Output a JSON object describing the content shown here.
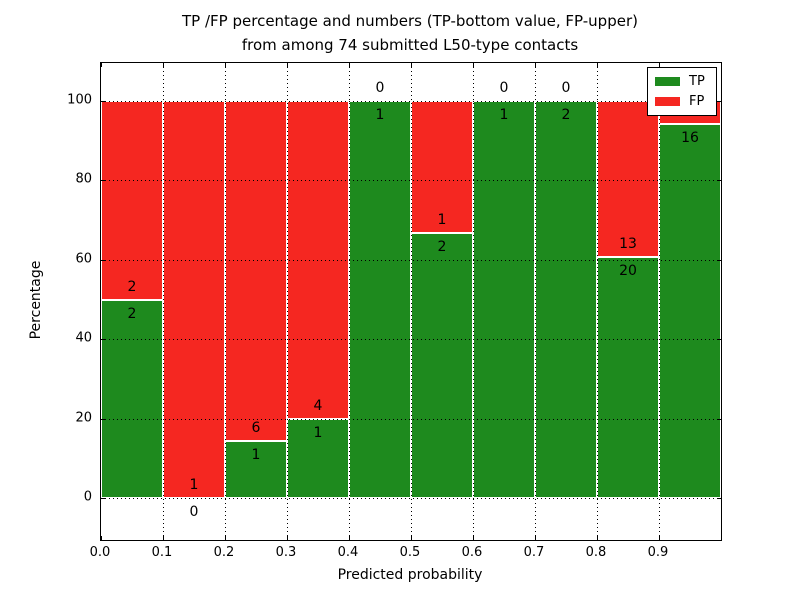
{
  "title": {
    "line1": "TP /FP percentage and numbers (TP-bottom value, FP-upper)",
    "line2": "from among 74 submitted L50-type contacts"
  },
  "axes": {
    "xlabel": "Predicted probability",
    "ylabel": "Percentage",
    "xtick_labels": [
      "0.0",
      "0.1",
      "0.2",
      "0.3",
      "0.4",
      "0.5",
      "0.6",
      "0.7",
      "0.8",
      "0.9"
    ],
    "ytick_labels": [
      "0",
      "20",
      "40",
      "60",
      "80",
      "100"
    ]
  },
  "legend": {
    "items": [
      {
        "label": "TP",
        "color_key": "tp"
      },
      {
        "label": "FP",
        "color_key": "fp"
      }
    ]
  },
  "colors": {
    "tp": "#1e8a1e",
    "fp": "#f52721"
  },
  "chart_data": {
    "type": "bar",
    "stacked": true,
    "title": "TP /FP percentage and numbers (TP-bottom value, FP-upper) from among 74 submitted L50-type contacts",
    "xlabel": "Predicted probability",
    "ylabel": "Percentage",
    "total_contacts": 74,
    "grid": true,
    "legend_position": "upper right",
    "xlim": [
      0.0,
      1.0
    ],
    "ylim": [
      -10.6,
      109.6
    ],
    "yticks": [
      0,
      20,
      40,
      60,
      80,
      100
    ],
    "bin_edges": [
      0.0,
      0.1,
      0.2,
      0.3,
      0.4,
      0.5,
      0.6,
      0.7,
      0.8,
      0.9,
      1.0
    ],
    "categories": [
      "0.0-0.1",
      "0.1-0.2",
      "0.2-0.3",
      "0.3-0.4",
      "0.4-0.5",
      "0.5-0.6",
      "0.6-0.7",
      "0.7-0.8",
      "0.8-0.9",
      "0.9-1.0"
    ],
    "series": [
      {
        "name": "TP",
        "counts": [
          2,
          0,
          1,
          1,
          1,
          2,
          1,
          2,
          20,
          16
        ],
        "pct": [
          50.0,
          0.0,
          14.29,
          20.0,
          100.0,
          66.67,
          100.0,
          100.0,
          60.61,
          94.12
        ]
      },
      {
        "name": "FP",
        "counts": [
          2,
          1,
          6,
          4,
          0,
          1,
          0,
          0,
          13,
          1
        ],
        "pct": [
          50.0,
          100.0,
          85.71,
          80.0,
          0.0,
          33.33,
          0.0,
          0.0,
          39.39,
          5.88
        ]
      }
    ]
  }
}
